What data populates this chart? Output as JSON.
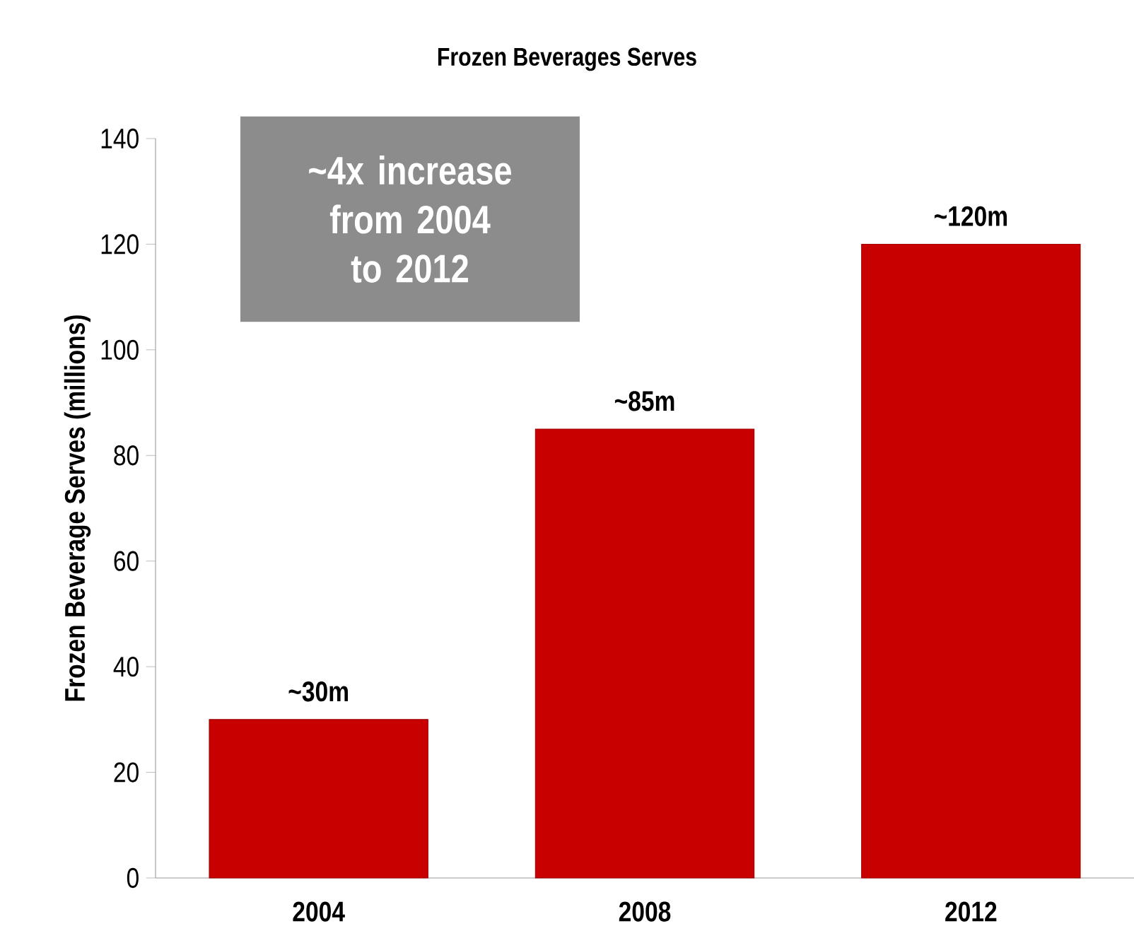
{
  "chart_data": {
    "type": "bar",
    "title": "Frozen Beverages Serves",
    "ylabel": "Frozen Beverage Serves (millions)",
    "categories": [
      "2004",
      "2008",
      "2012"
    ],
    "values": [
      30,
      85,
      120
    ],
    "value_labels": [
      "~30m",
      "~85m",
      "~120m"
    ],
    "color": "#c80000",
    "ylim": [
      0,
      140
    ],
    "yticks": [
      0,
      20,
      40,
      60,
      80,
      100,
      120,
      140
    ],
    "annotations": [
      "~4x increase from 2004 to 2012"
    ]
  }
}
